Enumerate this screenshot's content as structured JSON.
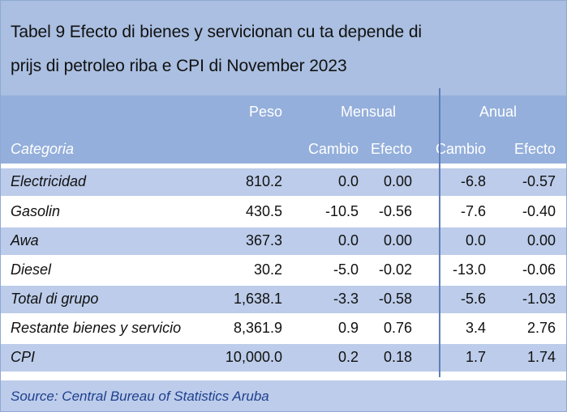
{
  "title": {
    "line1": "Tabel 9 Efecto di bienes y servicionan cu ta depende di",
    "line2": "prijs di petroleo riba e CPI di November 2023"
  },
  "header": {
    "peso": "Peso",
    "mensual": "Mensual",
    "anual": "Anual",
    "categoria": "Categoria",
    "cambio_m": "Cambio",
    "efecto_m": "Efecto",
    "cambio_a": "Cambio",
    "efecto_a": "Efecto"
  },
  "rows": [
    {
      "categoria": "Electricidad",
      "peso": "810.2",
      "m_cambio": "0.0",
      "m_efecto": "0.00",
      "a_cambio": "-6.8",
      "a_efecto": "-0.57"
    },
    {
      "categoria": "Gasolin",
      "peso": "430.5",
      "m_cambio": "-10.5",
      "m_efecto": "-0.56",
      "a_cambio": "-7.6",
      "a_efecto": "-0.40"
    },
    {
      "categoria": "Awa",
      "peso": "367.3",
      "m_cambio": "0.0",
      "m_efecto": "0.00",
      "a_cambio": "0.0",
      "a_efecto": "0.00"
    },
    {
      "categoria": "Diesel",
      "peso": "30.2",
      "m_cambio": "-5.0",
      "m_efecto": "-0.02",
      "a_cambio": "-13.0",
      "a_efecto": "-0.06"
    },
    {
      "categoria": "Total di grupo",
      "peso": "1,638.1",
      "m_cambio": "-3.3",
      "m_efecto": "-0.58",
      "a_cambio": "-5.6",
      "a_efecto": "-1.03"
    },
    {
      "categoria": "Restante bienes y servicio",
      "peso": "8,361.9",
      "m_cambio": "0.9",
      "m_efecto": "0.76",
      "a_cambio": "3.4",
      "a_efecto": "2.76"
    },
    {
      "categoria": "CPI",
      "peso": "10,000.0",
      "m_cambio": "0.2",
      "m_efecto": "0.18",
      "a_cambio": "1.7",
      "a_efecto": "1.74"
    }
  ],
  "source": "Source: Central Bureau of Statistics Aruba",
  "colors": {
    "title_bg": "#aabfe1",
    "header_bg": "#94afdb",
    "band_bg": "#bcccea",
    "source_text": "#1f3f8f",
    "divider": "#5f7fb8"
  }
}
